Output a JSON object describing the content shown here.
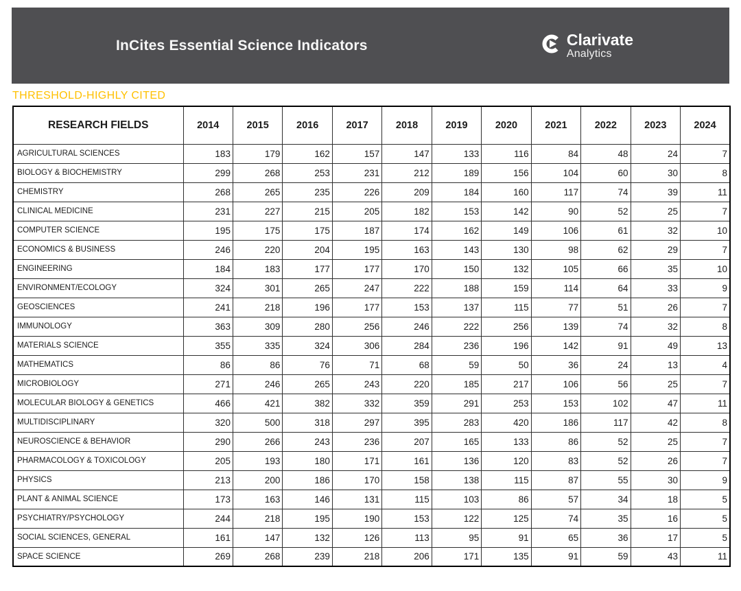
{
  "header": {
    "title": "InCites Essential Science Indicators",
    "logo": {
      "icon": "clarivate-icon",
      "brand": "Clarivate",
      "subtext": "Analytics"
    }
  },
  "section_label": "THRESHOLD-HIGHLY CITED",
  "colors": {
    "topbar_bg": "#4F4F52",
    "accent_gold": "#FFC000",
    "table_border": "#000000",
    "text": "#1C1C1C",
    "logo_white": "#FFFFFF"
  },
  "table": {
    "header": {
      "fields_label": "RESEARCH FIELDS",
      "years": [
        "2014",
        "2015",
        "2016",
        "2017",
        "2018",
        "2019",
        "2020",
        "2021",
        "2022",
        "2023",
        "2024"
      ]
    },
    "rows": [
      {
        "field": "AGRICULTURAL SCIENCES",
        "values": [
          183,
          179,
          162,
          157,
          147,
          133,
          116,
          84,
          48,
          24,
          7
        ]
      },
      {
        "field": "BIOLOGY & BIOCHEMISTRY",
        "values": [
          299,
          268,
          253,
          231,
          212,
          189,
          156,
          104,
          60,
          30,
          8
        ]
      },
      {
        "field": "CHEMISTRY",
        "values": [
          268,
          265,
          235,
          226,
          209,
          184,
          160,
          117,
          74,
          39,
          11
        ]
      },
      {
        "field": "CLINICAL MEDICINE",
        "values": [
          231,
          227,
          215,
          205,
          182,
          153,
          142,
          90,
          52,
          25,
          7
        ]
      },
      {
        "field": "COMPUTER SCIENCE",
        "values": [
          195,
          175,
          175,
          187,
          174,
          162,
          149,
          106,
          61,
          32,
          10
        ]
      },
      {
        "field": "ECONOMICS & BUSINESS",
        "values": [
          246,
          220,
          204,
          195,
          163,
          143,
          130,
          98,
          62,
          29,
          7
        ]
      },
      {
        "field": "ENGINEERING",
        "values": [
          184,
          183,
          177,
          177,
          170,
          150,
          132,
          105,
          66,
          35,
          10
        ]
      },
      {
        "field": "ENVIRONMENT/ECOLOGY",
        "values": [
          324,
          301,
          265,
          247,
          222,
          188,
          159,
          114,
          64,
          33,
          9
        ]
      },
      {
        "field": "GEOSCIENCES",
        "values": [
          241,
          218,
          196,
          177,
          153,
          137,
          115,
          77,
          51,
          26,
          7
        ]
      },
      {
        "field": "IMMUNOLOGY",
        "values": [
          363,
          309,
          280,
          256,
          246,
          222,
          256,
          139,
          74,
          32,
          8
        ]
      },
      {
        "field": "MATERIALS SCIENCE",
        "values": [
          355,
          335,
          324,
          306,
          284,
          236,
          196,
          142,
          91,
          49,
          13
        ]
      },
      {
        "field": "MATHEMATICS",
        "values": [
          86,
          86,
          76,
          71,
          68,
          59,
          50,
          36,
          24,
          13,
          4
        ]
      },
      {
        "field": "MICROBIOLOGY",
        "values": [
          271,
          246,
          265,
          243,
          220,
          185,
          217,
          106,
          56,
          25,
          7
        ]
      },
      {
        "field": "MOLECULAR BIOLOGY & GENETICS",
        "values": [
          466,
          421,
          382,
          332,
          359,
          291,
          253,
          153,
          102,
          47,
          11
        ]
      },
      {
        "field": "MULTIDISCIPLINARY",
        "values": [
          320,
          500,
          318,
          297,
          395,
          283,
          420,
          186,
          117,
          42,
          8
        ]
      },
      {
        "field": "NEUROSCIENCE & BEHAVIOR",
        "values": [
          290,
          266,
          243,
          236,
          207,
          165,
          133,
          86,
          52,
          25,
          7
        ]
      },
      {
        "field": "PHARMACOLOGY & TOXICOLOGY",
        "values": [
          205,
          193,
          180,
          171,
          161,
          136,
          120,
          83,
          52,
          26,
          7
        ]
      },
      {
        "field": "PHYSICS",
        "values": [
          213,
          200,
          186,
          170,
          158,
          138,
          115,
          87,
          55,
          30,
          9
        ]
      },
      {
        "field": "PLANT & ANIMAL SCIENCE",
        "values": [
          173,
          163,
          146,
          131,
          115,
          103,
          86,
          57,
          34,
          18,
          5
        ]
      },
      {
        "field": "PSYCHIATRY/PSYCHOLOGY",
        "values": [
          244,
          218,
          195,
          190,
          153,
          122,
          125,
          74,
          35,
          16,
          5
        ]
      },
      {
        "field": "SOCIAL SCIENCES, GENERAL",
        "values": [
          161,
          147,
          132,
          126,
          113,
          95,
          91,
          65,
          36,
          17,
          5
        ]
      },
      {
        "field": "SPACE SCIENCE",
        "values": [
          269,
          268,
          239,
          218,
          206,
          171,
          135,
          91,
          59,
          43,
          11
        ]
      }
    ]
  }
}
